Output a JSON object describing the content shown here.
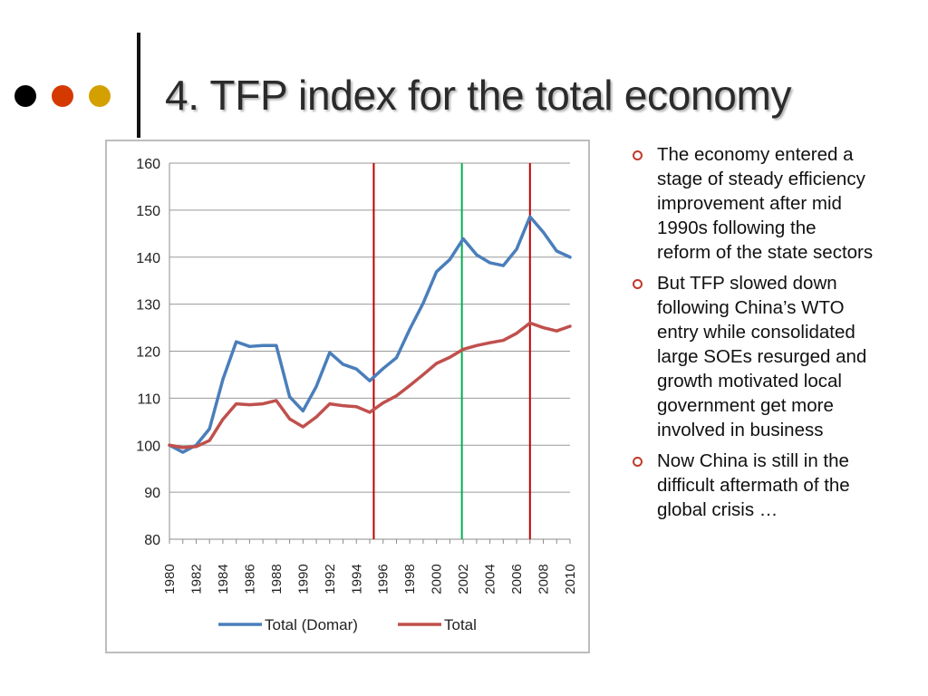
{
  "slide": {
    "title": "4. TFP index for the total economy",
    "decor_colors": [
      "#000000",
      "#d43a00",
      "#d4a000"
    ],
    "bullets": [
      "The economy entered a stage of steady efficiency improvement after mid 1990s following the reform of the state sectors",
      "But TFP slowed down following China’s WTO entry while consolidated large SOEs resurged and growth motivated local government get more involved in business",
      "Now China is still in the difficult aftermath of the global crisis …"
    ],
    "bullet_color": "#c0392b"
  },
  "chart_data": {
    "type": "line",
    "title": "",
    "xlabel": "",
    "ylabel": "",
    "x": [
      1980,
      1981,
      1982,
      1983,
      1984,
      1985,
      1986,
      1987,
      1988,
      1989,
      1990,
      1991,
      1992,
      1993,
      1994,
      1995,
      1996,
      1997,
      1998,
      1999,
      2000,
      2001,
      2002,
      2003,
      2004,
      2005,
      2006,
      2007,
      2008,
      2009,
      2010
    ],
    "x_tick_labels": [
      "1980",
      "1982",
      "1984",
      "1986",
      "1988",
      "1990",
      "1992",
      "1994",
      "1996",
      "1998",
      "2000",
      "2002",
      "2004",
      "2006",
      "2008",
      "2010"
    ],
    "ylim": [
      80,
      160
    ],
    "y_ticks": [
      80,
      90,
      100,
      110,
      120,
      130,
      140,
      150,
      160
    ],
    "grid": true,
    "legend": "bottom",
    "series": [
      {
        "name": "Total (Domar)",
        "color": "#4a7ebb",
        "values": [
          100,
          98.5,
          100,
          103.5,
          114,
          122,
          121,
          121.2,
          121.2,
          110.3,
          107.3,
          112.5,
          119.7,
          117.2,
          116.2,
          113.7,
          116.3,
          118.6,
          124.7,
          130.2,
          136.9,
          139.5,
          143.9,
          140.5,
          138.8,
          138.2,
          141.7,
          148.6,
          145.3,
          141.3,
          140
        ]
      },
      {
        "name": "Total",
        "color": "#c0504d",
        "values": [
          100,
          99.5,
          99.7,
          101,
          105.5,
          108.8,
          108.6,
          108.8,
          109.5,
          105.6,
          103.9,
          106,
          108.8,
          108.4,
          108.2,
          107,
          109,
          110.5,
          112.7,
          115,
          117.4,
          118.7,
          120.4,
          121.2,
          121.8,
          122.3,
          123.8,
          126,
          125,
          124.3,
          125.3
        ]
      }
    ],
    "vertical_markers": [
      {
        "x": 1995.3,
        "color": "#c00000"
      },
      {
        "x": 2001.9,
        "color": "#00b050"
      },
      {
        "x": 2007,
        "color": "#c00000"
      }
    ]
  }
}
